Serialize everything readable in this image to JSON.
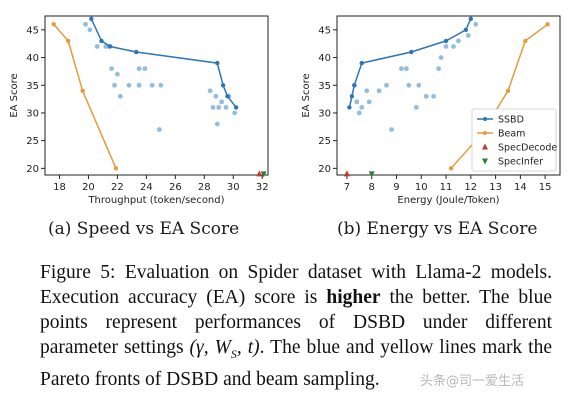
{
  "chart_data": [
    {
      "type": "scatter",
      "xlabel": "Throughput (token/second)",
      "ylabel": "EA Score",
      "xlim": [
        17,
        32.4
      ],
      "ylim": [
        18.8,
        47.5
      ],
      "xticks": [
        18,
        20,
        22,
        24,
        26,
        28,
        30,
        32
      ],
      "yticks": [
        20,
        25,
        30,
        35,
        40,
        45
      ],
      "series": [
        {
          "kind": "points",
          "color": "#7fb3d5",
          "points": [
            [
              19.8,
              46
            ],
            [
              20.1,
              45
            ],
            [
              20.6,
              42
            ],
            [
              21.2,
              42
            ],
            [
              21.4,
              42
            ],
            [
              21.6,
              38
            ],
            [
              22.0,
              37
            ],
            [
              21.8,
              35
            ],
            [
              22.2,
              33
            ],
            [
              22.8,
              35
            ],
            [
              23.5,
              38
            ],
            [
              23.9,
              38
            ],
            [
              23.5,
              35
            ],
            [
              24.4,
              35
            ],
            [
              25.0,
              35
            ],
            [
              24.9,
              27
            ],
            [
              28.4,
              34
            ],
            [
              28.8,
              33
            ],
            [
              28.6,
              31
            ],
            [
              29.0,
              31
            ],
            [
              29.2,
              32
            ],
            [
              28.9,
              28
            ],
            [
              29.7,
              33
            ],
            [
              29.5,
              31
            ],
            [
              30.1,
              30
            ]
          ]
        },
        {
          "kind": "front",
          "color": "#2e75b6",
          "points": [
            [
              20.2,
              47
            ],
            [
              20.9,
              43
            ],
            [
              21.5,
              42
            ],
            [
              23.3,
              41
            ],
            [
              28.9,
              39
            ],
            [
              29.3,
              35
            ],
            [
              29.6,
              33
            ],
            [
              30.2,
              31
            ]
          ]
        },
        {
          "kind": "front",
          "color": "#e69a3c",
          "points": [
            [
              17.6,
              46
            ],
            [
              18.6,
              43
            ],
            [
              19.6,
              34
            ],
            [
              21.9,
              20
            ]
          ]
        },
        {
          "kind": "marker-up",
          "color": "#c0392b",
          "points": [
            [
              31.8,
              19
            ]
          ]
        },
        {
          "kind": "marker-down",
          "color": "#2e7d32",
          "points": [
            [
              32.1,
              19
            ]
          ]
        }
      ]
    },
    {
      "type": "scatter",
      "xlabel": "Energy (Joule/Token)",
      "ylabel": "EA Score",
      "xlim": [
        6.6,
        15.6
      ],
      "ylim": [
        18.8,
        47.5
      ],
      "xticks": [
        7,
        8,
        9,
        10,
        11,
        12,
        13,
        14,
        15
      ],
      "yticks": [
        20,
        25,
        30,
        35,
        40,
        45
      ],
      "series": [
        {
          "kind": "points",
          "color": "#7fb3d5",
          "points": [
            [
              7.3,
              35
            ],
            [
              7.4,
              32
            ],
            [
              7.5,
              30
            ],
            [
              7.6,
              31
            ],
            [
              7.8,
              34
            ],
            [
              8.3,
              34
            ],
            [
              8.6,
              35
            ],
            [
              8.8,
              27
            ],
            [
              9.2,
              38
            ],
            [
              9.4,
              38
            ],
            [
              9.5,
              35
            ],
            [
              9.9,
              35
            ],
            [
              10.2,
              33
            ],
            [
              10.5,
              33
            ],
            [
              10.7,
              38
            ],
            [
              10.8,
              40
            ],
            [
              11.0,
              42
            ],
            [
              11.3,
              42
            ],
            [
              11.5,
              43
            ],
            [
              11.9,
              44
            ],
            [
              12.2,
              46
            ],
            [
              9.8,
              31
            ],
            [
              7.9,
              32
            ]
          ]
        },
        {
          "kind": "front",
          "color": "#2e75b6",
          "label": "SSBD",
          "points": [
            [
              7.1,
              31
            ],
            [
              7.2,
              33
            ],
            [
              7.3,
              35
            ],
            [
              7.6,
              39
            ],
            [
              9.6,
              41
            ],
            [
              11.0,
              43
            ],
            [
              11.8,
              45
            ],
            [
              12.0,
              47
            ]
          ]
        },
        {
          "kind": "front",
          "color": "#e69a3c",
          "label": "Beam",
          "points": [
            [
              11.2,
              20
            ],
            [
              12.4,
              26
            ],
            [
              13.5,
              34
            ],
            [
              14.2,
              43
            ],
            [
              15.1,
              46
            ]
          ]
        },
        {
          "kind": "marker-up",
          "color": "#c0392b",
          "label": "SpecDecode",
          "points": [
            [
              7.0,
              19
            ]
          ]
        },
        {
          "kind": "marker-down",
          "color": "#2e7d32",
          "label": "SpecInfer",
          "points": [
            [
              8.0,
              19
            ]
          ]
        }
      ],
      "legend": "lower-right"
    }
  ],
  "subcaptions": {
    "a": "(a) Speed vs EA Score",
    "b": "(b) Energy vs EA Score"
  },
  "caption": {
    "part1": "Figure 5: Evaluation on Spider dataset with Llama-2 models. Execution accuracy (EA) score is ",
    "bold": "higher",
    "part2": " the better. The blue points represent performances of DSBD under different parameter settings ",
    "math": "(γ, W",
    "math_sub": "S",
    "math_end": ", t)",
    "part3": ". The blue and yellow lines mark the Pareto fronts of DSBD and beam sampling."
  },
  "watermark": "头条@司一爱生活"
}
